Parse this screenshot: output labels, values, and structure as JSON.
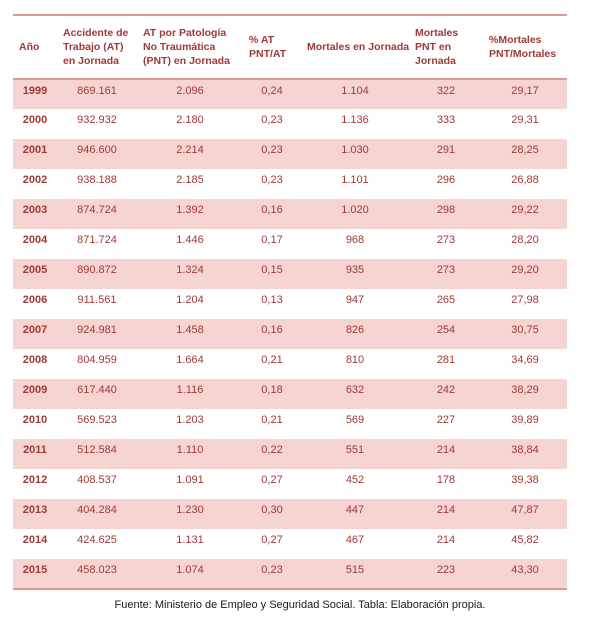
{
  "table": {
    "columns": [
      "Año",
      "Accidente de Trabajo (AT) en Jornada",
      "AT por Patología No Traumática (PNT) en Jornada",
      "% AT PNT/AT",
      "Mortales en Jornada",
      "Mortales PNT en Jornada",
      "%Mortales PNT/Mortales"
    ],
    "rows": [
      [
        "1999",
        "869.161",
        "2.096",
        "0,24",
        "1.104",
        "322",
        "29,17"
      ],
      [
        "2000",
        "932.932",
        "2.180",
        "0,23",
        "1.136",
        "333",
        "29,31"
      ],
      [
        "2001",
        "946.600",
        "2.214",
        "0,23",
        "1.030",
        "291",
        "28,25"
      ],
      [
        "2002",
        "938.188",
        "2.185",
        "0,23",
        "1.101",
        "296",
        "26,88"
      ],
      [
        "2003",
        "874.724",
        "1.392",
        "0,16",
        "1.020",
        "298",
        "29,22"
      ],
      [
        "2004",
        "871.724",
        "1.446",
        "0,17",
        "968",
        "273",
        "28,20"
      ],
      [
        "2005",
        "890.872",
        "1.324",
        "0,15",
        "935",
        "273",
        "29,20"
      ],
      [
        "2006",
        "911.561",
        "1.204",
        "0,13",
        "947",
        "265",
        "27,98"
      ],
      [
        "2007",
        "924.981",
        "1.458",
        "0,16",
        "826",
        "254",
        "30,75"
      ],
      [
        "2008",
        "804.959",
        "1.664",
        "0,21",
        "810",
        "281",
        "34,69"
      ],
      [
        "2009",
        "617.440",
        "1.116",
        "0,18",
        "632",
        "242",
        "38,29"
      ],
      [
        "2010",
        "569.523",
        "1.203",
        "0,21",
        "569",
        "227",
        "39,89"
      ],
      [
        "2011",
        "512.584",
        "1.110",
        "0,22",
        "551",
        "214",
        "38,84"
      ],
      [
        "2012",
        "408.537",
        "1.091",
        "0,27",
        "452",
        "178",
        "39,38"
      ],
      [
        "2013",
        "404.284",
        "1.230",
        "0,30",
        "447",
        "214",
        "47,87"
      ],
      [
        "2014",
        "424.625",
        "1.131",
        "0,27",
        "467",
        "214",
        "45,82"
      ],
      [
        "2015",
        "458.023",
        "1.074",
        "0,23",
        "515",
        "223",
        "43,30"
      ]
    ]
  },
  "footer": {
    "text": "Fuente: Ministerio de Empleo y Seguridad Social. Tabla: Elaboración propia."
  },
  "colors": {
    "table_text": "#9E3937",
    "banded_row_fill": "#F6D4D2",
    "table_border": "#D89A97",
    "footer_text": "#1A1A1A",
    "page_background": "#FFFFFF"
  }
}
